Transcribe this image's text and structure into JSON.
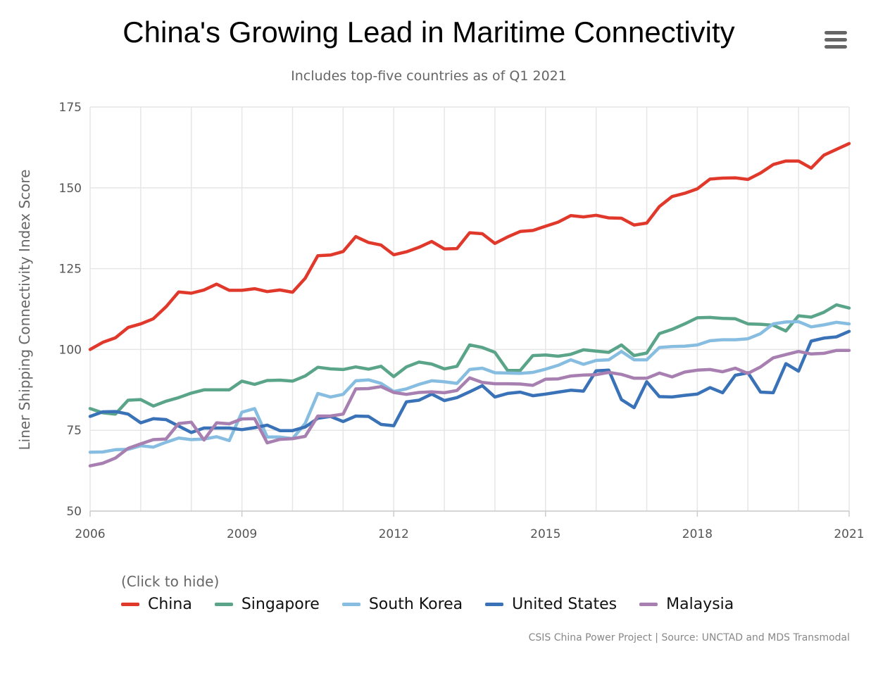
{
  "title": "China's Growing Lead in Maritime Connectivity",
  "subtitle": "Includes top-five countries as of Q1 2021",
  "menu_icon": "hamburger-icon",
  "legend_hint": "(Click to hide)",
  "credits": "CSIS China Power Project | Source: UNCTAD and MDS Transmodal",
  "chart_data": {
    "type": "line",
    "ylabel": "Liner Shipping Connectivity Index Score",
    "xlabel": "",
    "ylim": [
      50,
      175
    ],
    "xlim": [
      2006,
      2021
    ],
    "yticks": [
      50,
      75,
      100,
      125,
      150,
      175
    ],
    "xticks": [
      2006,
      2009,
      2012,
      2015,
      2018,
      2021
    ],
    "grid": true,
    "legend": "bottom-left",
    "x": [
      2006.0,
      2006.25,
      2006.5,
      2006.75,
      2007.0,
      2007.25,
      2007.5,
      2007.75,
      2008.0,
      2008.25,
      2008.5,
      2008.75,
      2009.0,
      2009.25,
      2009.5,
      2009.75,
      2010.0,
      2010.25,
      2010.5,
      2010.75,
      2011.0,
      2011.25,
      2011.5,
      2011.75,
      2012.0,
      2012.25,
      2012.5,
      2012.75,
      2013.0,
      2013.25,
      2013.5,
      2013.75,
      2014.0,
      2014.25,
      2014.5,
      2014.75,
      2015.0,
      2015.25,
      2015.5,
      2015.75,
      2016.0,
      2016.25,
      2016.5,
      2016.75,
      2017.0,
      2017.25,
      2017.5,
      2017.75,
      2018.0,
      2018.25,
      2018.5,
      2018.75,
      2019.0,
      2019.25,
      2019.5,
      2019.75,
      2020.0,
      2020.25,
      2020.5,
      2020.75,
      2021.0
    ],
    "series": [
      {
        "name": "China",
        "color": "#e0392b",
        "values": [
          100.0,
          102.2,
          103.6,
          106.8,
          107.9,
          109.5,
          113.2,
          117.8,
          117.4,
          118.4,
          120.2,
          118.3,
          118.3,
          118.8,
          117.9,
          118.4,
          117.7,
          122.0,
          129.0,
          129.2,
          130.3,
          134.9,
          133.1,
          132.3,
          129.3,
          130.2,
          131.6,
          133.4,
          131.1,
          131.2,
          136.1,
          135.8,
          132.8,
          134.8,
          136.5,
          136.8,
          138.1,
          139.4,
          141.4,
          141.0,
          141.5,
          140.7,
          140.6,
          138.5,
          139.1,
          144.2,
          147.3,
          148.3,
          149.7,
          152.7,
          153.0,
          153.1,
          152.6,
          154.6,
          157.2,
          158.3,
          158.3,
          156.1,
          160.1,
          161.9,
          163.7
        ]
      },
      {
        "name": "Singapore",
        "color": "#5aa58a",
        "values": [
          81.7,
          80.4,
          80.0,
          84.3,
          84.5,
          82.5,
          84.0,
          85.1,
          86.5,
          87.5,
          87.5,
          87.5,
          90.2,
          89.2,
          90.4,
          90.5,
          90.2,
          91.8,
          94.5,
          94.0,
          93.8,
          94.6,
          93.9,
          94.8,
          91.6,
          94.6,
          96.1,
          95.5,
          94.0,
          94.8,
          101.4,
          100.6,
          99.1,
          93.5,
          93.5,
          98.1,
          98.3,
          97.9,
          98.5,
          99.9,
          99.5,
          99.1,
          101.4,
          98.1,
          98.9,
          104.9,
          106.2,
          107.9,
          109.8,
          109.9,
          109.6,
          109.5,
          107.9,
          107.8,
          107.5,
          105.7,
          110.4,
          110.0,
          111.5,
          113.8,
          112.8
        ]
      },
      {
        "name": "South Korea",
        "color": "#86bde0",
        "values": [
          68.2,
          68.3,
          69.0,
          69.1,
          70.2,
          69.8,
          71.3,
          72.6,
          72.1,
          72.3,
          73.0,
          71.8,
          80.6,
          81.7,
          72.9,
          72.9,
          72.4,
          77.1,
          86.4,
          85.3,
          86.1,
          90.3,
          90.6,
          89.5,
          87.0,
          87.8,
          89.2,
          90.3,
          90.0,
          89.5,
          93.8,
          94.2,
          92.8,
          92.7,
          92.6,
          92.9,
          93.9,
          95.1,
          96.8,
          95.4,
          96.6,
          96.8,
          99.4,
          96.8,
          96.8,
          100.6,
          100.9,
          101.0,
          101.4,
          102.7,
          103.0,
          103.0,
          103.3,
          104.9,
          107.9,
          108.5,
          108.6,
          107.0,
          107.6,
          108.4,
          107.9
        ]
      },
      {
        "name": "United States",
        "color": "#3a72b8",
        "values": [
          79.3,
          80.7,
          80.8,
          80.0,
          77.3,
          78.6,
          78.3,
          76.3,
          74.3,
          75.7,
          75.7,
          75.7,
          75.2,
          75.8,
          76.6,
          74.9,
          74.9,
          76.0,
          78.7,
          79.3,
          77.7,
          79.4,
          79.3,
          76.8,
          76.4,
          83.8,
          84.3,
          86.2,
          84.2,
          85.1,
          86.9,
          88.8,
          85.3,
          86.4,
          86.8,
          85.7,
          86.2,
          86.8,
          87.4,
          87.1,
          93.4,
          93.6,
          84.5,
          82.0,
          90.0,
          85.4,
          85.3,
          85.8,
          86.2,
          88.2,
          86.6,
          92.0,
          92.8,
          86.8,
          86.6,
          95.6,
          93.3,
          102.6,
          103.5,
          103.9,
          105.6
        ]
      },
      {
        "name": "Malaysia",
        "color": "#a77fb0",
        "values": [
          64.0,
          64.8,
          66.4,
          69.4,
          70.8,
          72.1,
          72.3,
          77.1,
          77.5,
          72.0,
          77.3,
          77.0,
          78.5,
          78.6,
          71.1,
          72.2,
          72.4,
          73.1,
          79.4,
          79.4,
          80.0,
          87.8,
          87.9,
          88.5,
          86.7,
          86.1,
          86.7,
          86.9,
          86.6,
          87.3,
          91.2,
          89.8,
          89.4,
          89.4,
          89.3,
          88.9,
          90.8,
          90.9,
          91.8,
          92.1,
          92.2,
          92.9,
          92.3,
          91.1,
          91.1,
          92.7,
          91.5,
          93.0,
          93.6,
          93.8,
          93.1,
          94.2,
          92.6,
          94.6,
          97.4,
          98.4,
          99.4,
          98.6,
          98.8,
          99.7,
          99.7
        ]
      }
    ]
  }
}
